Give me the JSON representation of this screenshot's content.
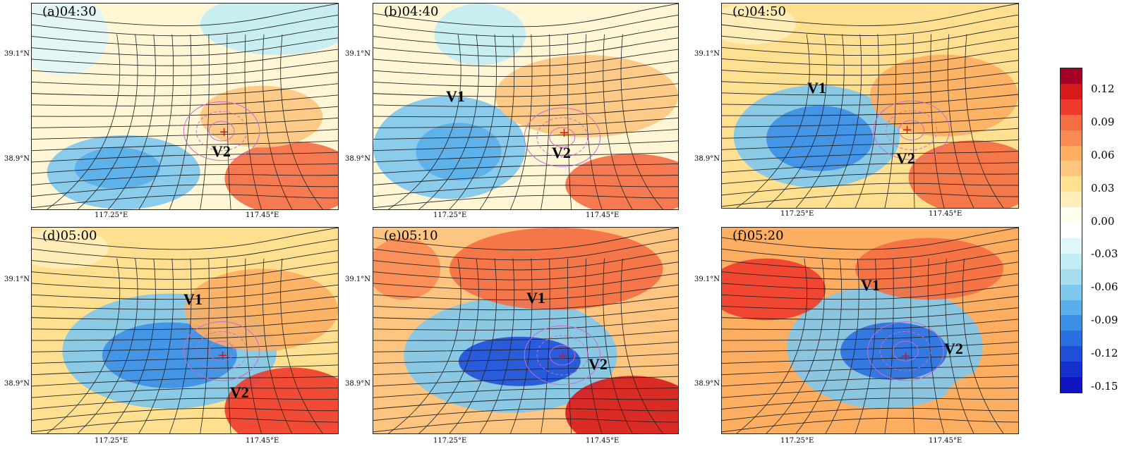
{
  "panels": [
    {
      "title": "(a)04:30",
      "vortex_labels": [
        "V2"
      ]
    },
    {
      "title": "(b)04:40",
      "vortex_labels": [
        "V1",
        "V2"
      ]
    },
    {
      "title": "(c)04:50",
      "vortex_labels": [
        "V1",
        "V2"
      ]
    },
    {
      "title": "(d)05:00",
      "vortex_labels": [
        "V1",
        "V2"
      ]
    },
    {
      "title": "(e)05:10",
      "vortex_labels": [
        "V1",
        "V2"
      ]
    },
    {
      "title": "(f)05:20",
      "vortex_labels": [
        "V1",
        "V2"
      ]
    }
  ],
  "axes": {
    "y_ticks": [
      "39.1°N",
      "38.9°N"
    ],
    "x_ticks": [
      "117.25°E",
      "117.45°E"
    ]
  },
  "marker_symbol": "+",
  "colorbar": {
    "tick_labels": [
      "0.12",
      "0.09",
      "0.06",
      "0.03",
      "0.00",
      "-0.03",
      "-0.06",
      "-0.09",
      "-0.12",
      "-0.15"
    ],
    "colors_top_to_bottom": [
      "#a50026",
      "#d7191c",
      "#ef3b2c",
      "#f46d43",
      "#fb8b55",
      "#fdae61",
      "#fdc57f",
      "#fee090",
      "#ffeebb",
      "#ffffee",
      "#ffffff",
      "#e0f6f8",
      "#c2edf5",
      "#a6def0",
      "#7ec8ee",
      "#5aaeea",
      "#3c8fe6",
      "#2b6fe0",
      "#1f4fd8",
      "#1530cc",
      "#0d14c0"
    ],
    "range": [
      -0.15,
      0.135
    ]
  }
}
